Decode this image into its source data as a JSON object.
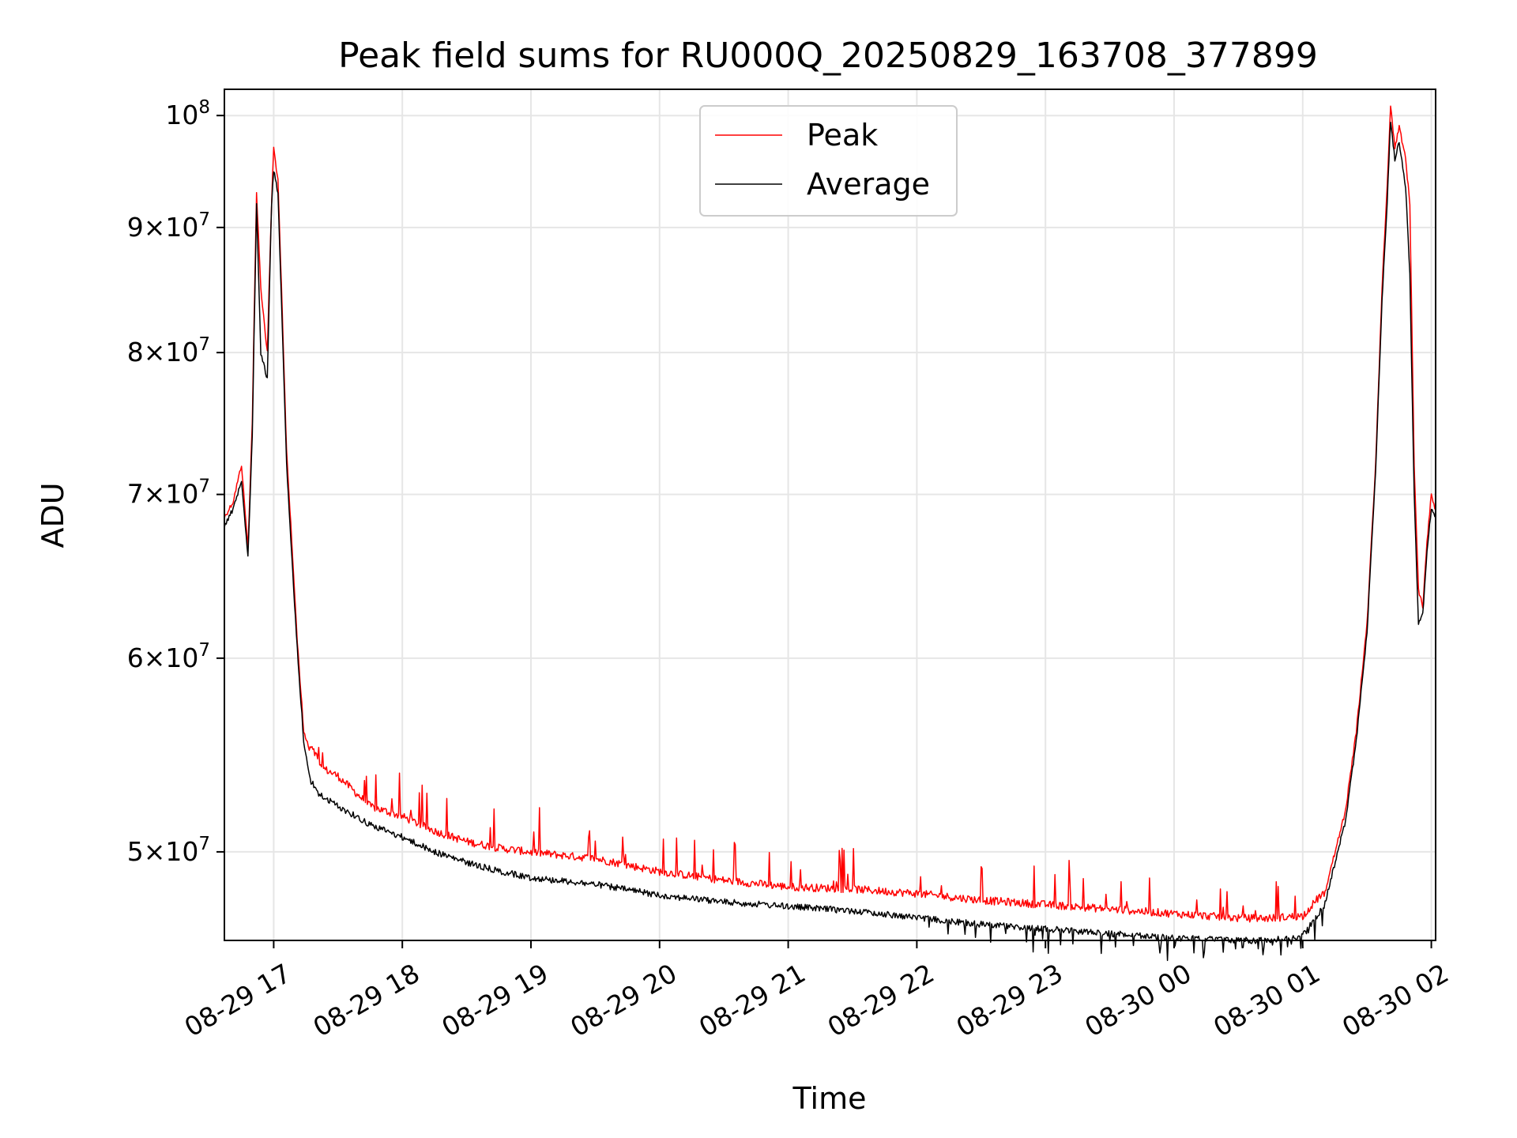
{
  "chart_data": {
    "type": "line",
    "title": "Peak field sums for RU000Q_20250829_163708_377899",
    "xlabel": "Time",
    "ylabel": "ADU",
    "yscale": "log",
    "ylim": [
      46000000,
      102500000
    ],
    "xlim": [
      "2025-08-29 16:37",
      "2025-08-30 02:02"
    ],
    "x_ticks": [
      {
        "t": "2025-08-29 17:00",
        "label": "08-29 17"
      },
      {
        "t": "2025-08-29 18:00",
        "label": "08-29 18"
      },
      {
        "t": "2025-08-29 19:00",
        "label": "08-29 19"
      },
      {
        "t": "2025-08-29 20:00",
        "label": "08-29 20"
      },
      {
        "t": "2025-08-29 21:00",
        "label": "08-29 21"
      },
      {
        "t": "2025-08-29 22:00",
        "label": "08-29 22"
      },
      {
        "t": "2025-08-29 23:00",
        "label": "08-29 23"
      },
      {
        "t": "2025-08-30 00:00",
        "label": "08-30 00"
      },
      {
        "t": "2025-08-30 01:00",
        "label": "08-30 01"
      },
      {
        "t": "2025-08-30 02:00",
        "label": "08-30 02"
      }
    ],
    "y_ticks": [
      {
        "v": 50000000,
        "mant": "5",
        "exp": "7"
      },
      {
        "v": 60000000,
        "mant": "6",
        "exp": "7"
      },
      {
        "v": 70000000,
        "mant": "7",
        "exp": "7"
      },
      {
        "v": 80000000,
        "mant": "8",
        "exp": "7"
      },
      {
        "v": 90000000,
        "mant": "9",
        "exp": "7"
      },
      {
        "v": 100000000,
        "mant": "",
        "exp": "8"
      }
    ],
    "grid": true,
    "legend_position": "top-center",
    "series": [
      {
        "name": "Peak",
        "color": "#ff0000",
        "x": [
          "2025-08-29 16:37",
          "2025-08-29 16:41",
          "2025-08-29 16:45",
          "2025-08-29 16:48",
          "2025-08-29 16:50",
          "2025-08-29 16:52",
          "2025-08-29 16:54",
          "2025-08-29 16:57",
          "2025-08-29 16:59",
          "2025-08-29 17:00",
          "2025-08-29 17:02",
          "2025-08-29 17:04",
          "2025-08-29 17:06",
          "2025-08-29 17:08",
          "2025-08-29 17:11",
          "2025-08-29 17:14",
          "2025-08-29 17:17",
          "2025-08-29 17:20",
          "2025-08-29 17:21",
          "2025-08-29 17:30",
          "2025-08-29 17:45",
          "2025-08-29 18:00",
          "2025-08-29 18:15",
          "2025-08-29 18:30",
          "2025-08-29 18:45",
          "2025-08-29 19:00",
          "2025-08-29 19:30",
          "2025-08-29 20:00",
          "2025-08-29 20:30",
          "2025-08-29 21:00",
          "2025-08-29 21:30",
          "2025-08-29 22:00",
          "2025-08-29 22:30",
          "2025-08-29 23:00",
          "2025-08-29 23:30",
          "2025-08-30 00:00",
          "2025-08-30 00:30",
          "2025-08-30 00:45",
          "2025-08-30 01:00",
          "2025-08-30 01:10",
          "2025-08-30 01:20",
          "2025-08-30 01:25",
          "2025-08-30 01:30",
          "2025-08-30 01:34",
          "2025-08-30 01:37",
          "2025-08-30 01:39",
          "2025-08-30 01:41",
          "2025-08-30 01:43",
          "2025-08-30 01:45",
          "2025-08-30 01:48",
          "2025-08-30 01:50",
          "2025-08-30 01:52",
          "2025-08-30 01:54",
          "2025-08-30 01:56",
          "2025-08-30 01:58",
          "2025-08-30 02:00",
          "2025-08-30 02:02"
        ],
        "values": [
          68500000,
          69500000,
          72000000,
          66500000,
          75000000,
          93000000,
          85000000,
          80000000,
          92000000,
          97000000,
          94000000,
          83000000,
          73000000,
          68000000,
          61000000,
          56000000,
          55000000,
          54500000,
          54000000,
          53500000,
          52000000,
          51500000,
          50800000,
          50300000,
          50000000,
          49800000,
          49500000,
          48900000,
          48500000,
          48200000,
          48100000,
          47900000,
          47600000,
          47400000,
          47200000,
          47000000,
          46800000,
          46800000,
          46900000,
          48000000,
          52000000,
          56000000,
          62000000,
          72000000,
          85000000,
          92000000,
          101000000,
          97000000,
          99000000,
          96000000,
          92000000,
          72000000,
          64000000,
          63000000,
          67000000,
          70000000,
          69000000
        ]
      },
      {
        "name": "Average",
        "color": "#000000",
        "x": [
          "2025-08-29 16:37",
          "2025-08-29 16:41",
          "2025-08-29 16:45",
          "2025-08-29 16:48",
          "2025-08-29 16:50",
          "2025-08-29 16:52",
          "2025-08-29 16:54",
          "2025-08-29 16:57",
          "2025-08-29 16:59",
          "2025-08-29 17:00",
          "2025-08-29 17:02",
          "2025-08-29 17:04",
          "2025-08-29 17:06",
          "2025-08-29 17:08",
          "2025-08-29 17:11",
          "2025-08-29 17:14",
          "2025-08-29 17:17",
          "2025-08-29 17:20",
          "2025-08-29 17:21",
          "2025-08-29 17:30",
          "2025-08-29 17:45",
          "2025-08-29 18:00",
          "2025-08-29 18:15",
          "2025-08-29 18:30",
          "2025-08-29 18:45",
          "2025-08-29 19:00",
          "2025-08-29 19:30",
          "2025-08-29 20:00",
          "2025-08-29 20:30",
          "2025-08-29 21:00",
          "2025-08-29 21:30",
          "2025-08-29 22:00",
          "2025-08-29 22:30",
          "2025-08-29 23:00",
          "2025-08-29 23:30",
          "2025-08-30 00:00",
          "2025-08-30 00:30",
          "2025-08-30 00:45",
          "2025-08-30 01:00",
          "2025-08-30 01:10",
          "2025-08-30 01:20",
          "2025-08-30 01:25",
          "2025-08-30 01:30",
          "2025-08-30 01:34",
          "2025-08-30 01:37",
          "2025-08-30 01:39",
          "2025-08-30 01:41",
          "2025-08-30 01:43",
          "2025-08-30 01:45",
          "2025-08-30 01:48",
          "2025-08-30 01:50",
          "2025-08-30 01:52",
          "2025-08-30 01:54",
          "2025-08-30 01:56",
          "2025-08-30 01:58",
          "2025-08-30 02:00",
          "2025-08-30 02:02"
        ],
        "values": [
          68000000,
          69000000,
          71000000,
          66000000,
          74000000,
          92000000,
          80000000,
          78000000,
          92000000,
          95000000,
          93000000,
          82000000,
          72000000,
          67000000,
          60500000,
          55500000,
          53500000,
          53000000,
          52800000,
          52200000,
          51300000,
          50700000,
          50000000,
          49500000,
          49100000,
          48800000,
          48500000,
          48000000,
          47700000,
          47500000,
          47300000,
          47000000,
          46700000,
          46500000,
          46300000,
          46100000,
          46000000,
          46000000,
          46200000,
          47500000,
          51500000,
          55500000,
          61500000,
          71500000,
          84000000,
          90500000,
          99500000,
          96000000,
          97500000,
          93500000,
          86000000,
          70000000,
          62000000,
          62500000,
          66500000,
          69000000,
          68500000
        ]
      }
    ]
  }
}
